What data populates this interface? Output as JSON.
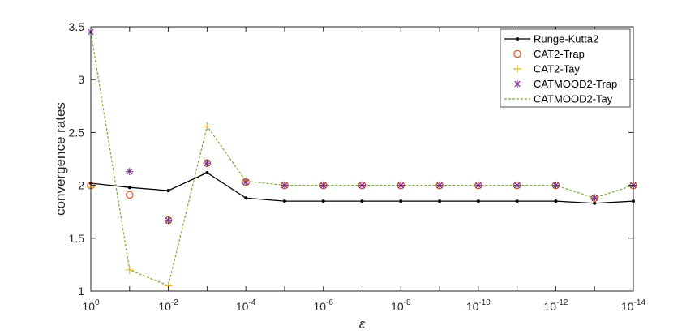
{
  "chart_data": {
    "type": "line",
    "xscale": "log",
    "xlabel": "ε",
    "ylabel": "convergence rates",
    "xlim": [
      1,
      1e-14
    ],
    "ylim": [
      1,
      3.5
    ],
    "x": [
      1,
      0.1,
      0.01,
      0.001,
      0.0001,
      1e-05,
      1e-06,
      1e-07,
      1e-08,
      1e-09,
      1e-10,
      1e-11,
      1e-12,
      1e-13,
      1e-14
    ],
    "x_ticks": [
      {
        "base": "10",
        "exp": "0",
        "value": 1
      },
      {
        "base": "10",
        "exp": "-2",
        "value": 0.01
      },
      {
        "base": "10",
        "exp": "-4",
        "value": 0.0001
      },
      {
        "base": "10",
        "exp": "-6",
        "value": 1e-06
      },
      {
        "base": "10",
        "exp": "-8",
        "value": 1e-08
      },
      {
        "base": "10",
        "exp": "-10",
        "value": 1e-10
      },
      {
        "base": "10",
        "exp": "-12",
        "value": 1e-12
      },
      {
        "base": "10",
        "exp": "-14",
        "value": 1e-14
      }
    ],
    "y_ticks": [
      {
        "label": "1",
        "value": 1
      },
      {
        "label": "1.5",
        "value": 1.5
      },
      {
        "label": "2",
        "value": 2
      },
      {
        "label": "2.5",
        "value": 2.5
      },
      {
        "label": "3",
        "value": 3
      },
      {
        "label": "3.5",
        "value": 3.5
      }
    ],
    "grid": false,
    "legend_position": "top-right",
    "series": [
      {
        "name": "Runge-Kutta2",
        "style": "line-dot",
        "color": "#000000",
        "values": [
          2.02,
          1.98,
          1.95,
          2.12,
          1.88,
          1.85,
          1.85,
          1.85,
          1.85,
          1.85,
          1.85,
          1.85,
          1.85,
          1.83,
          1.85
        ]
      },
      {
        "name": "CAT2-Trap",
        "style": "circle",
        "color": "#D95319",
        "values": [
          2.0,
          1.91,
          1.67,
          2.21,
          2.03,
          2.0,
          2.0,
          2.0,
          2.0,
          2.0,
          2.0,
          2.0,
          2.0,
          1.88,
          2.0
        ]
      },
      {
        "name": "CAT2-Tay",
        "style": "plus",
        "color": "#EDB120",
        "values": [
          1.98,
          1.2,
          1.05,
          2.56,
          2.04,
          2.0,
          2.0,
          2.0,
          2.0,
          2.0,
          2.0,
          2.0,
          2.0,
          1.88,
          2.0
        ]
      },
      {
        "name": "CATMOOD2-Trap",
        "style": "asterisk",
        "color": "#7E2F8E",
        "values": [
          3.45,
          2.13,
          1.67,
          2.21,
          2.03,
          2.0,
          2.0,
          2.0,
          2.0,
          2.0,
          2.0,
          2.0,
          2.0,
          1.88,
          2.0
        ]
      },
      {
        "name": "CATMOOD2-Tay",
        "style": "dashed-line",
        "color": "#77AC30",
        "values": [
          3.45,
          1.2,
          1.05,
          2.56,
          2.04,
          2.0,
          2.0,
          2.0,
          2.0,
          2.0,
          2.0,
          2.0,
          2.0,
          1.88,
          2.0
        ]
      }
    ]
  }
}
